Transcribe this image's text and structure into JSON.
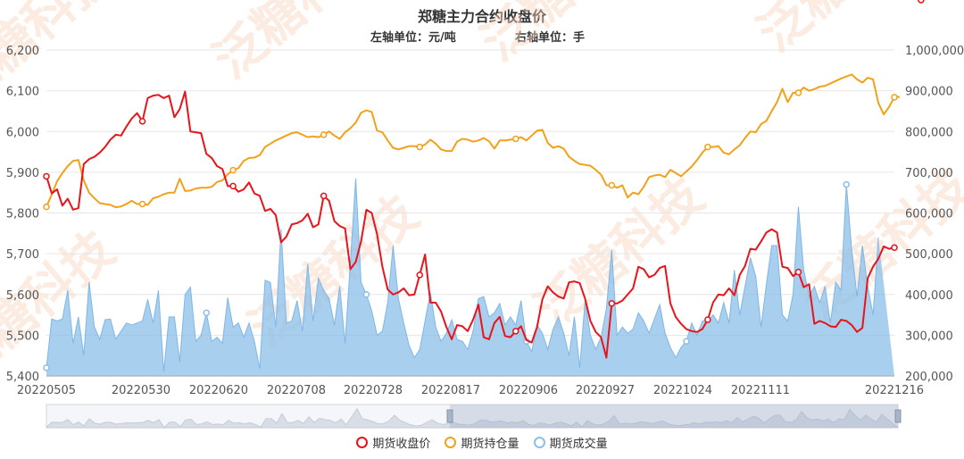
{
  "header": {
    "title": "郑糖主力合约收盘价",
    "left_unit": "左轴单位：元/吨",
    "right_unit": "右轴单位：手"
  },
  "watermark": {
    "text": "泛糖科技"
  },
  "legend": {
    "items": [
      {
        "label": "期货收盘价",
        "color": "#e8141b"
      },
      {
        "label": "期货持仓量",
        "color": "#f2a11a"
      },
      {
        "label": "期货成交量",
        "color": "#8bbfe8"
      }
    ]
  },
  "chart_data": {
    "type": "line",
    "title": "郑糖主力合约收盘价",
    "x_tick_labels": [
      "20220505",
      "20220530",
      "20220620",
      "20220708",
      "20220728",
      "20220817",
      "20220906",
      "20220927",
      "20221024",
      "20221111",
      "20221216"
    ],
    "y_left": {
      "min": 5400,
      "max": 6200,
      "ticks": [
        "5,400",
        "5,500",
        "5,600",
        "5,700",
        "5,800",
        "5,900",
        "6,000",
        "6,100",
        "6,200"
      ]
    },
    "y_right": {
      "min": 200000,
      "max": 1000000,
      "ticks": [
        "200,000",
        "300,000",
        "400,000",
        "500,000",
        "600,000",
        "700,000",
        "800,000",
        "900,000",
        "1,000,000"
      ]
    },
    "series": [
      {
        "name": "期货收盘价",
        "axis": "left",
        "color": "#e8141b",
        "values": [
          5890,
          5848,
          5858,
          5818,
          5835,
          5808,
          5812,
          5920,
          5932,
          5938,
          5948,
          5962,
          5980,
          5992,
          5990,
          6012,
          6032,
          6045,
          6025,
          6082,
          6088,
          6090,
          6082,
          6088,
          6035,
          6055,
          6098,
          6000,
          5998,
          5996,
          5945,
          5935,
          5915,
          5908,
          5866,
          5866,
          5852,
          5858,
          5875,
          5848,
          5842,
          5805,
          5810,
          5795,
          5728,
          5742,
          5772,
          5775,
          5782,
          5798,
          5765,
          5772,
          5842,
          5830,
          5780,
          5768,
          5762,
          5662,
          5680,
          5730,
          5808,
          5800,
          5748,
          5668,
          5612,
          5600,
          5605,
          5615,
          5598,
          5600,
          5648,
          5698,
          5580,
          5580,
          5558,
          5520,
          5490,
          5525,
          5522,
          5510,
          5538,
          5575,
          5495,
          5490,
          5530,
          5545,
          5498,
          5495,
          5510,
          5522,
          5488,
          5482,
          5520,
          5588,
          5620,
          5605,
          5595,
          5590,
          5630,
          5632,
          5628,
          5590,
          5535,
          5508,
          5495,
          5445,
          5578,
          5578,
          5585,
          5600,
          5615,
          5668,
          5662,
          5642,
          5648,
          5665,
          5670,
          5578,
          5545,
          5528,
          5515,
          5510,
          5508,
          5515,
          5538,
          5580,
          5600,
          5598,
          5615,
          5598,
          5648,
          5670,
          5712,
          5710,
          5730,
          5752,
          5760,
          5752,
          5668,
          5665,
          5645,
          5655,
          5618,
          5625,
          5528,
          5535,
          5530,
          5522,
          5520,
          5538,
          5535,
          5525,
          5508,
          5518,
          5640,
          5668,
          5688,
          5718,
          5712,
          5715
        ]
      },
      {
        "name": "期货持仓量",
        "axis": "right",
        "color": "#f2a11a",
        "values": [
          615000,
          645000,
          678000,
          698000,
          715000,
          728000,
          730000,
          680000,
          650000,
          636000,
          624000,
          622000,
          620000,
          614000,
          616000,
          622000,
          630000,
          622000,
          622000,
          620000,
          636000,
          640000,
          646000,
          650000,
          650000,
          684000,
          654000,
          655000,
          660000,
          662000,
          662000,
          664000,
          676000,
          680000,
          695000,
          705000,
          710000,
          728000,
          735000,
          736000,
          742000,
          762000,
          770000,
          778000,
          784000,
          790000,
          796000,
          798000,
          792000,
          786000,
          788000,
          786000,
          792000,
          800000,
          790000,
          782000,
          798000,
          808000,
          822000,
          846000,
          852000,
          848000,
          802000,
          798000,
          778000,
          760000,
          756000,
          760000,
          764000,
          764000,
          762000,
          768000,
          780000,
          770000,
          756000,
          752000,
          752000,
          775000,
          782000,
          780000,
          775000,
          778000,
          784000,
          776000,
          758000,
          778000,
          778000,
          780000,
          782000,
          786000,
          778000,
          790000,
          802000,
          804000,
          772000,
          760000,
          764000,
          758000,
          738000,
          728000,
          720000,
          718000,
          716000,
          706000,
          694000,
          668000,
          668000,
          662000,
          668000,
          638000,
          650000,
          646000,
          664000,
          688000,
          692000,
          694000,
          688000,
          706000,
          698000,
          690000,
          702000,
          714000,
          730000,
          748000,
          762000,
          762000,
          764000,
          748000,
          744000,
          756000,
          766000,
          784000,
          800000,
          798000,
          818000,
          826000,
          850000,
          872000,
          905000,
          872000,
          895000,
          895000,
          908000,
          900000,
          904000,
          910000,
          912000,
          918000,
          924000,
          930000,
          935000,
          940000,
          928000,
          920000,
          932000,
          928000,
          870000,
          842000,
          860000,
          884000,
          885000
        ]
      },
      {
        "name": "期货成交量",
        "axis": "right",
        "color": "#8bbfe8",
        "values": [
          220000,
          340000,
          335000,
          340000,
          410000,
          280000,
          345000,
          250000,
          430000,
          320000,
          290000,
          338000,
          340000,
          290000,
          310000,
          330000,
          325000,
          330000,
          335000,
          388000,
          330000,
          410000,
          210000,
          345000,
          345000,
          235000,
          400000,
          418000,
          285000,
          300000,
          355000,
          285000,
          295000,
          280000,
          392000,
          320000,
          330000,
          295000,
          330000,
          285000,
          218000,
          435000,
          430000,
          320000,
          560000,
          330000,
          335000,
          385000,
          310000,
          475000,
          335000,
          440000,
          410000,
          390000,
          325000,
          420000,
          280000,
          480000,
          685000,
          430000,
          400000,
          360000,
          300000,
          310000,
          380000,
          520000,
          390000,
          330000,
          275000,
          245000,
          265000,
          335000,
          405000,
          320000,
          285000,
          305000,
          338000,
          290000,
          285000,
          265000,
          310000,
          390000,
          395000,
          345000,
          355000,
          378000,
          325000,
          345000,
          325000,
          385000,
          285000,
          260000,
          325000,
          305000,
          265000,
          315000,
          345000,
          305000,
          250000,
          345000,
          220000,
          385000,
          300000,
          265000,
          295000,
          365000,
          510000,
          300000,
          320000,
          305000,
          315000,
          355000,
          335000,
          305000,
          340000,
          375000,
          305000,
          270000,
          245000,
          270000,
          285000,
          330000,
          300000,
          335000,
          335000,
          350000,
          330000,
          380000,
          330000,
          460000,
          350000,
          420000,
          490000,
          445000,
          320000,
          425000,
          520000,
          520000,
          350000,
          335000,
          400000,
          615000,
          460000,
          395000,
          420000,
          380000,
          420000,
          330000,
          430000,
          410000,
          670000,
          510000,
          395000,
          520000,
          420000,
          350000,
          540000
        ]
      }
    ]
  }
}
